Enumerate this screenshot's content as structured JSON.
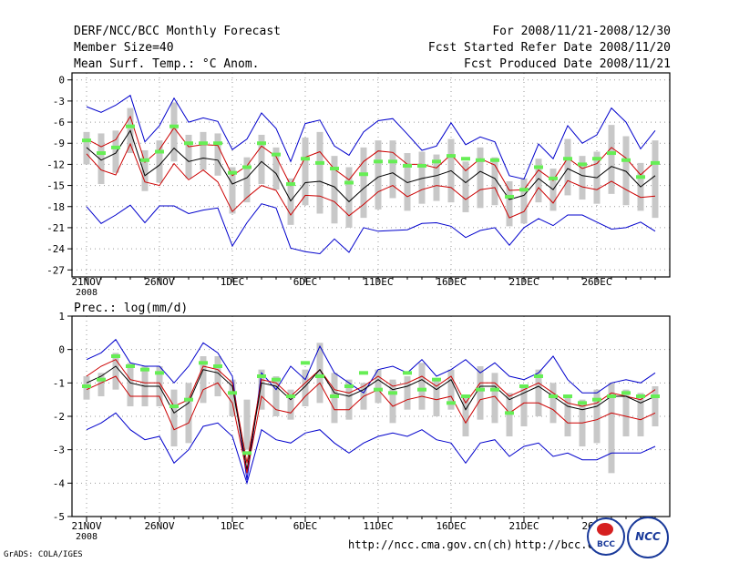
{
  "header": {
    "title": "DERF/NCC/BCC Monthly Forecast",
    "member_size": "Member Size=40",
    "variable": "Mean Surf. Temp.: °C Anom.",
    "period": "For 2008/11/21-2008/12/30",
    "started": "Fcst Started Refer Date 2008/11/20",
    "produced": "Fcst Produced Date 2008/11/21"
  },
  "footer": {
    "grads": "GrADS: COLA/IGES",
    "url_ncc": "http://ncc.cma.gov.cn(ch)",
    "url_bcc": "http://bcc.c",
    "logo_bcc": "BCC",
    "logo_ncc": "NCC"
  },
  "colors": {
    "envelope": "#0000cc",
    "spread": "#cc0000",
    "mean": "#000000",
    "box": "#c8c8c8",
    "obs": "#66ee55"
  },
  "chart_data": [
    {
      "type": "line",
      "title": "",
      "ylabel": "Mean Surf. Temp.: °C Anom.",
      "ylim": [
        -28,
        1
      ],
      "yticks": [
        0,
        -3,
        -6,
        -9,
        -12,
        -15,
        -18,
        -21,
        -24,
        -27
      ],
      "ytick_labels": [
        "0",
        "-3",
        "-6",
        "-9",
        "-12",
        "-15",
        "-18",
        "-21",
        "-24",
        "-27"
      ],
      "x": [
        1,
        2,
        3,
        4,
        5,
        6,
        7,
        8,
        9,
        10,
        11,
        12,
        13,
        14,
        15,
        16,
        17,
        18,
        19,
        20,
        21,
        22,
        23,
        24,
        25,
        26,
        27,
        28,
        29,
        30,
        31,
        32,
        33,
        34,
        35,
        36,
        37,
        38,
        39,
        40
      ],
      "xticks": [
        {
          "day": 1,
          "label": "21NOV",
          "sub": "2008"
        },
        {
          "day": 6,
          "label": "26NOV"
        },
        {
          "day": 11,
          "label": "1DEC"
        },
        {
          "day": 16,
          "label": "6DEC"
        },
        {
          "day": 21,
          "label": "11DEC"
        },
        {
          "day": 26,
          "label": "16DEC"
        },
        {
          "day": 31,
          "label": "21DEC"
        },
        {
          "day": 36,
          "label": "26DEC"
        }
      ],
      "series": [
        {
          "name": "Ensemble max",
          "values": [
            -3.8,
            -4.6,
            -3.6,
            -2.2,
            -8.8,
            -6.5,
            -2.6,
            -6.0,
            -5.4,
            -5.9,
            -9.9,
            -8.4,
            -4.7,
            -6.9,
            -11.6,
            -6.2,
            -5.7,
            -9.4,
            -10.7,
            -7.4,
            -5.8,
            -5.5,
            -7.7,
            -10.0,
            -9.4,
            -6.1,
            -9.2,
            -8.1,
            -8.8,
            -13.6,
            -14.1,
            -9.1,
            -11.2,
            -6.5,
            -9.0,
            -7.8,
            -4.0,
            -6.0,
            -9.8,
            -7.2
          ]
        },
        {
          "name": "Mean + spread",
          "values": [
            -8.4,
            -9.5,
            -8.5,
            -5.2,
            -11.7,
            -9.9,
            -6.8,
            -9.5,
            -9.2,
            -9.3,
            -13.6,
            -12.2,
            -9.4,
            -10.9,
            -15.0,
            -11.0,
            -10.2,
            -12.7,
            -14.2,
            -11.6,
            -10.1,
            -10.3,
            -12.0,
            -12.0,
            -12.5,
            -10.6,
            -12.9,
            -11.2,
            -12.1,
            -15.7,
            -15.6,
            -12.8,
            -14.3,
            -11.1,
            -12.6,
            -11.9,
            -9.6,
            -11.1,
            -13.5,
            -11.6
          ]
        },
        {
          "name": "Ensemble mean",
          "values": [
            -9.6,
            -11.4,
            -10.4,
            -7.2,
            -13.6,
            -12.1,
            -9.7,
            -11.6,
            -11.1,
            -11.4,
            -14.8,
            -13.9,
            -11.6,
            -13.3,
            -17.2,
            -14.6,
            -14.4,
            -15.2,
            -17.3,
            -15.4,
            -13.8,
            -13.2,
            -14.6,
            -14.0,
            -13.6,
            -12.9,
            -14.6,
            -13.0,
            -14.0,
            -17.0,
            -16.4,
            -14.0,
            -15.6,
            -12.6,
            -13.6,
            -13.9,
            -12.3,
            -13.0,
            -15.2,
            -13.6
          ]
        },
        {
          "name": "Mean - spread",
          "values": [
            -10.5,
            -12.8,
            -13.5,
            -9.1,
            -14.5,
            -15.0,
            -11.9,
            -14.2,
            -12.8,
            -14.5,
            -18.7,
            -16.7,
            -15.0,
            -15.7,
            -19.2,
            -16.4,
            -16.5,
            -17.3,
            -19.3,
            -17.7,
            -15.9,
            -15.0,
            -16.6,
            -15.6,
            -15.0,
            -15.3,
            -17.0,
            -15.6,
            -15.3,
            -19.6,
            -18.7,
            -15.3,
            -17.5,
            -14.3,
            -15.2,
            -15.6,
            -14.4,
            -15.6,
            -16.7,
            -16.5
          ]
        },
        {
          "name": "Ensemble min",
          "values": [
            -18.0,
            -20.4,
            -19.2,
            -17.8,
            -20.3,
            -17.9,
            -17.9,
            -19.0,
            -18.5,
            -18.2,
            -23.6,
            -20.3,
            -17.6,
            -18.2,
            -23.9,
            -24.4,
            -24.7,
            -22.6,
            -24.5,
            -21.0,
            -21.5,
            -21.4,
            -21.3,
            -20.4,
            -20.3,
            -20.8,
            -22.4,
            -21.4,
            -21.0,
            -23.5,
            -21.0,
            -19.7,
            -20.7,
            -19.2,
            -19.2,
            -20.2,
            -21.2,
            -21.0,
            -20.2,
            -21.5
          ]
        }
      ],
      "boxes": {
        "low": [
          -12.0,
          -14.8,
          -13.2,
          -10.4,
          -15.8,
          -14.6,
          -11.6,
          -14.0,
          -12.8,
          -13.6,
          -19.0,
          -17.4,
          -14.8,
          -15.6,
          -20.6,
          -17.8,
          -19.0,
          -20.4,
          -21.0,
          -19.6,
          -18.4,
          -16.8,
          -18.6,
          -17.6,
          -17.2,
          -17.4,
          -18.8,
          -18.2,
          -17.8,
          -20.8,
          -20.4,
          -17.4,
          -18.6,
          -16.4,
          -17.0,
          -17.6,
          -16.2,
          -17.8,
          -18.6,
          -19.6
        ],
        "high": [
          -7.4,
          -7.6,
          -7.2,
          -4.0,
          -10.0,
          -8.6,
          -3.2,
          -7.8,
          -7.4,
          -7.6,
          -12.4,
          -11.0,
          -7.8,
          -9.6,
          -14.0,
          -8.2,
          -7.4,
          -10.8,
          -12.4,
          -9.6,
          -8.6,
          -8.6,
          -10.4,
          -10.2,
          -10.6,
          -8.4,
          -11.6,
          -9.6,
          -11.0,
          -14.4,
          -14.0,
          -11.2,
          -12.6,
          -8.4,
          -10.8,
          -10.2,
          -6.4,
          -8.0,
          -11.8,
          -8.6
        ]
      },
      "observed": [
        -8.6,
        -10.4,
        -9.6,
        -6.6,
        -11.4,
        -10.2,
        -6.6,
        -9.0,
        -9.0,
        -9.0,
        -13.2,
        -12.4,
        -9.0,
        -10.6,
        -14.8,
        -11.2,
        -11.8,
        -12.6,
        -14.6,
        -13.4,
        -11.6,
        -11.6,
        -12.2,
        -12.2,
        -11.6,
        -10.8,
        -11.2,
        -11.4,
        -11.4,
        -16.6,
        -15.6,
        -12.4,
        -14.0,
        -11.2,
        -12.0,
        -11.2,
        -10.4,
        -11.4,
        -13.8,
        -11.8
      ]
    },
    {
      "type": "line",
      "title": "Prec.: log(mm/d)",
      "ylabel": "Prec.: log(mm/d)",
      "ylim": [
        -5,
        1
      ],
      "yticks": [
        1,
        0,
        -1,
        -2,
        -3,
        -4,
        -5
      ],
      "ytick_labels": [
        "1",
        "0",
        "-1",
        "-2",
        "-3",
        "-4",
        "-5"
      ],
      "x": [
        1,
        2,
        3,
        4,
        5,
        6,
        7,
        8,
        9,
        10,
        11,
        12,
        13,
        14,
        15,
        16,
        17,
        18,
        19,
        20,
        21,
        22,
        23,
        24,
        25,
        26,
        27,
        28,
        29,
        30,
        31,
        32,
        33,
        34,
        35,
        36,
        37,
        38,
        39,
        40
      ],
      "xticks": [
        {
          "day": 1,
          "label": "21NOV",
          "sub": "2008"
        },
        {
          "day": 6,
          "label": "26NOV"
        },
        {
          "day": 11,
          "label": "1DEC"
        },
        {
          "day": 16,
          "label": "6DEC"
        },
        {
          "day": 21,
          "label": "11DEC"
        },
        {
          "day": 26,
          "label": "16DEC"
        },
        {
          "day": 31,
          "label": "21DEC"
        },
        {
          "day": 36,
          "label": "26DEC"
        }
      ],
      "series": [
        {
          "name": "Ensemble max",
          "values": [
            -0.3,
            -0.1,
            0.3,
            -0.4,
            -0.5,
            -0.5,
            -1.0,
            -0.5,
            0.2,
            -0.1,
            -0.8,
            -3.9,
            -0.7,
            -1.2,
            -0.5,
            -0.9,
            0.1,
            -0.7,
            -1.0,
            -1.3,
            -0.6,
            -0.5,
            -0.7,
            -0.3,
            -0.8,
            -0.6,
            -0.3,
            -0.7,
            -0.4,
            -0.8,
            -0.9,
            -0.7,
            -0.2,
            -0.9,
            -1.3,
            -1.3,
            -1.0,
            -0.9,
            -1.0,
            -0.7
          ]
        },
        {
          "name": "Mean + spread",
          "values": [
            -0.8,
            -0.5,
            -0.3,
            -0.9,
            -1.0,
            -1.0,
            -1.7,
            -1.5,
            -0.5,
            -0.6,
            -1.0,
            -3.4,
            -0.9,
            -1.0,
            -1.4,
            -1.0,
            -0.6,
            -1.2,
            -1.3,
            -1.1,
            -0.8,
            -1.1,
            -1.0,
            -0.8,
            -1.1,
            -0.8,
            -1.6,
            -1.0,
            -1.0,
            -1.4,
            -1.2,
            -1.0,
            -1.3,
            -1.6,
            -1.7,
            -1.6,
            -1.3,
            -1.4,
            -1.5,
            -1.2
          ]
        },
        {
          "name": "Ensemble mean",
          "values": [
            -1.0,
            -0.8,
            -0.5,
            -1.0,
            -1.1,
            -1.1,
            -1.9,
            -1.6,
            -0.6,
            -0.7,
            -1.1,
            -3.6,
            -1.0,
            -1.1,
            -1.5,
            -1.1,
            -0.6,
            -1.3,
            -1.4,
            -1.2,
            -0.9,
            -1.2,
            -1.1,
            -0.9,
            -1.2,
            -0.9,
            -1.8,
            -1.1,
            -1.1,
            -1.5,
            -1.3,
            -1.1,
            -1.4,
            -1.7,
            -1.8,
            -1.7,
            -1.4,
            -1.4,
            -1.6,
            -1.4
          ]
        },
        {
          "name": "Mean - spread",
          "values": [
            -1.2,
            -1.0,
            -0.8,
            -1.4,
            -1.4,
            -1.4,
            -2.4,
            -2.2,
            -1.2,
            -1.0,
            -1.6,
            -3.7,
            -1.4,
            -1.8,
            -1.9,
            -1.4,
            -1.0,
            -1.8,
            -1.8,
            -1.4,
            -1.2,
            -1.7,
            -1.5,
            -1.4,
            -1.5,
            -1.4,
            -2.2,
            -1.5,
            -1.4,
            -1.9,
            -1.6,
            -1.6,
            -1.8,
            -2.2,
            -2.2,
            -2.1,
            -1.9,
            -2.0,
            -2.1,
            -1.9
          ]
        },
        {
          "name": "Ensemble min",
          "values": [
            -2.4,
            -2.2,
            -1.9,
            -2.4,
            -2.7,
            -2.6,
            -3.4,
            -3.0,
            -2.3,
            -2.2,
            -2.6,
            -4.0,
            -2.4,
            -2.7,
            -2.8,
            -2.5,
            -2.4,
            -2.8,
            -3.1,
            -2.8,
            -2.6,
            -2.5,
            -2.6,
            -2.4,
            -2.7,
            -2.8,
            -3.4,
            -2.8,
            -2.7,
            -3.2,
            -2.9,
            -2.8,
            -3.2,
            -3.1,
            -3.3,
            -3.3,
            -3.1,
            -3.1,
            -3.1,
            -2.9
          ]
        }
      ],
      "boxes": {
        "low": [
          -1.5,
          -1.4,
          -1.2,
          -1.7,
          -1.7,
          -1.7,
          -2.9,
          -2.8,
          -1.6,
          -1.4,
          -2.0,
          -3.0,
          -1.8,
          -2.0,
          -2.1,
          -1.7,
          -1.6,
          -2.2,
          -2.1,
          -1.8,
          -1.6,
          -2.2,
          -1.8,
          -1.8,
          -2.0,
          -1.8,
          -2.6,
          -2.1,
          -2.2,
          -2.6,
          -2.3,
          -2.0,
          -2.2,
          -2.6,
          -2.9,
          -2.8,
          -3.7,
          -2.6,
          -2.6,
          -2.3
        ]
      },
      "boxes_high": [
        -0.8,
        -0.7,
        -0.1,
        -0.4,
        -0.5,
        -0.5,
        -1.2,
        -1.0,
        -0.2,
        -0.2,
        -0.9,
        -1.5,
        -0.6,
        -0.8,
        -1.2,
        -0.6,
        0.2,
        -0.7,
        -0.9,
        -1.0,
        -0.6,
        -0.9,
        -0.8,
        -0.4,
        -0.9,
        -0.6,
        -1.4,
        -0.5,
        -0.7,
        -1.3,
        -1.1,
        -0.6,
        -1.0,
        -1.4,
        -1.5,
        -1.2,
        -1.0,
        -1.2,
        -1.3,
        -1.1
      ],
      "observed": [
        -1.1,
        -0.9,
        -0.2,
        -0.5,
        -0.6,
        -0.7,
        -1.7,
        -1.5,
        -0.4,
        -0.5,
        -1.3,
        -3.1,
        -0.8,
        -0.9,
        -1.4,
        -0.4,
        -0.8,
        -1.4,
        -1.1,
        -0.7,
        -1.2,
        -1.3,
        -0.7,
        -1.2,
        -0.9,
        -1.6,
        -1.4,
        -1.2,
        -1.2,
        -1.9,
        -1.1,
        -0.8,
        -1.4,
        -1.4,
        -1.6,
        -1.5,
        -1.4,
        -1.3,
        -1.4,
        -1.4
      ]
    }
  ]
}
